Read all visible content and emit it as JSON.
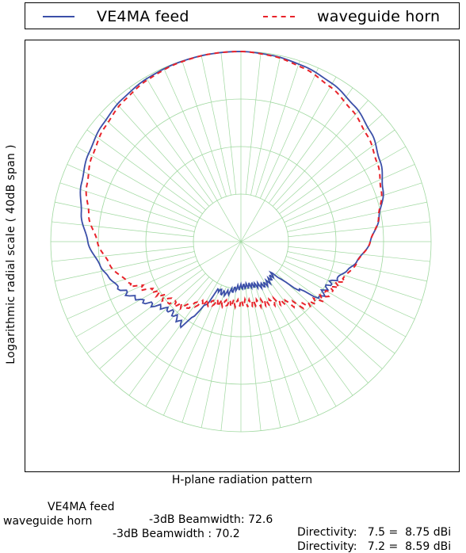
{
  "chart_data": {
    "type": "polar",
    "title": "",
    "xlabel": "H-plane radiation pattern",
    "ylabel": "Logarithmic radial scale ( 40dB span )",
    "radial_scale": "log",
    "radial_span_db": 40,
    "grid": true,
    "legend_position": "top",
    "series": [
      {
        "name": "VE4MA feed",
        "color": "#3b4fa8",
        "line_style": "solid",
        "angles_deg": [
          0,
          10,
          20,
          30,
          40,
          50,
          60,
          70,
          80,
          90,
          100,
          105,
          110,
          115,
          120,
          125,
          130,
          135,
          140,
          145,
          150,
          155,
          160,
          165,
          170,
          175,
          180,
          185,
          190,
          195,
          200,
          205,
          210,
          215,
          220,
          225,
          230,
          235,
          240,
          245,
          250,
          255,
          260,
          270,
          280,
          290,
          300,
          310,
          320,
          330,
          340,
          350
        ],
        "gain_db": [
          0,
          -0.3,
          -0.8,
          -1.6,
          -2.8,
          -4.3,
          -6.2,
          -8.2,
          -10.5,
          -12.8,
          -15.3,
          -16.8,
          -18.3,
          -19.3,
          -19.7,
          -19.4,
          -24.5,
          -30.5,
          -30.2,
          -29.8,
          -29.6,
          -29.8,
          -30.2,
          -30.5,
          -30.6,
          -30.6,
          -30.5,
          -30.2,
          -29.6,
          -28.8,
          -28.5,
          -29.0,
          -24.0,
          -18.5,
          -19.0,
          -19.3,
          -18.5,
          -17.0,
          -15.5,
          -13.8,
          -12.5,
          -11.2,
          -10.0,
          -7.8,
          -5.9,
          -4.3,
          -3.0,
          -1.9,
          -1.0,
          -0.4,
          -0.1,
          0
        ]
      },
      {
        "name": "waveguide horn",
        "color": "#e8232a",
        "line_style": "dashed",
        "angles_deg": [
          0,
          10,
          20,
          30,
          40,
          50,
          60,
          70,
          80,
          90,
          100,
          110,
          115,
          120,
          125,
          130,
          135,
          140,
          145,
          150,
          160,
          170,
          180,
          190,
          200,
          210,
          215,
          220,
          225,
          230,
          235,
          240,
          245,
          250,
          260,
          270,
          280,
          290,
          300,
          310,
          320,
          330,
          340,
          350
        ],
        "gain_db": [
          0,
          -0.4,
          -1.2,
          -2.4,
          -3.8,
          -5.3,
          -6.9,
          -8.6,
          -10.6,
          -12.8,
          -15.2,
          -17.2,
          -18.0,
          -18.8,
          -19.2,
          -20.2,
          -21.0,
          -22.8,
          -24.5,
          -25.5,
          -26.3,
          -26.9,
          -27.1,
          -26.9,
          -26.3,
          -25.2,
          -24.0,
          -22.2,
          -21.2,
          -20.5,
          -19.8,
          -19.2,
          -17.0,
          -14.8,
          -12.0,
          -9.8,
          -7.5,
          -5.5,
          -3.9,
          -2.6,
          -1.5,
          -0.7,
          -0.2,
          0
        ]
      }
    ]
  },
  "legend": {
    "items": [
      {
        "label": "VE4MA feed"
      },
      {
        "label": "waveguide horn"
      }
    ]
  },
  "stats": [
    {
      "name": "VE4MA feed",
      "beamwidth_text": "-3dB Beamwidth: 72.6",
      "directivity_text": "Directivity:   7.5 =  8.75 dBi"
    },
    {
      "name": "waveguide horn",
      "beamwidth_text": "-3dB Beamwidth : 70.2",
      "directivity_text": "Directivity:   7.2 =  8.59 dBi"
    }
  ],
  "colors": {
    "grid": "#9fd89f",
    "series_1": "#3b4fa8",
    "series_2": "#e8232a"
  }
}
